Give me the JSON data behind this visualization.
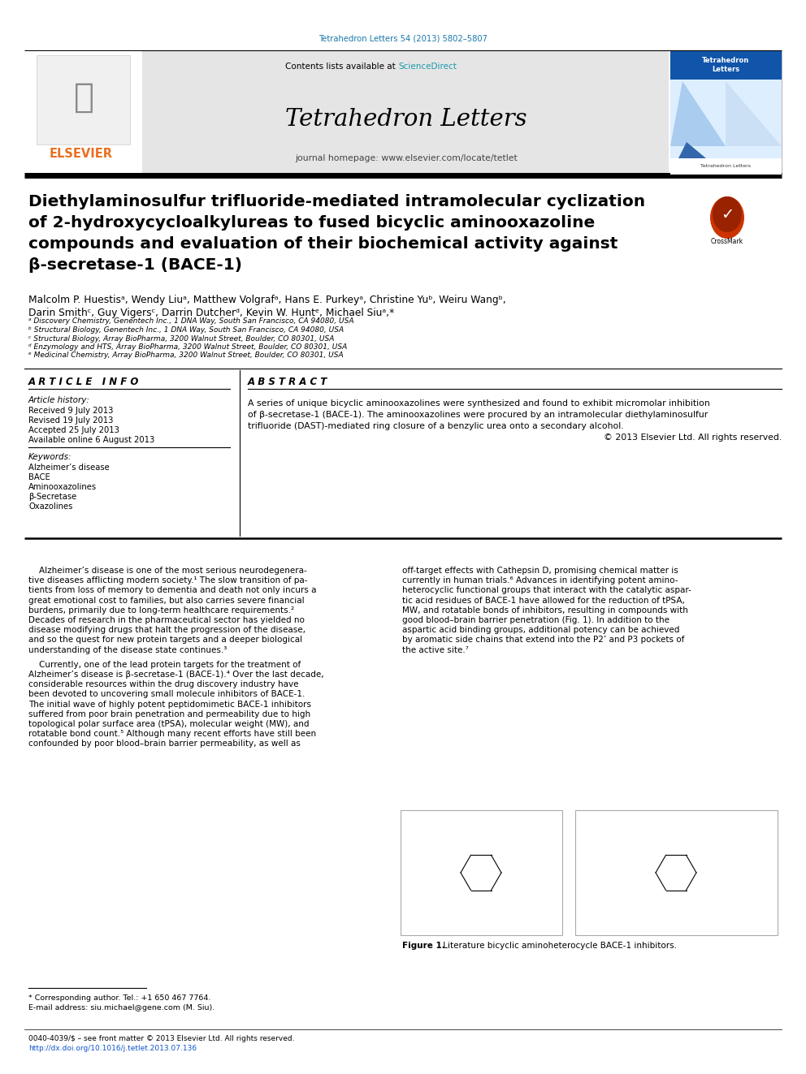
{
  "bg_color": "#ffffff",
  "header_top_text": "Tetrahedron Letters 54 (2013) 5802–5807",
  "header_top_color": "#1a7aaa",
  "journal_title": "Tetrahedron Letters",
  "journal_homepage": "journal homepage: www.elsevier.com/locate/tetlet",
  "contents_text": "Contents lists available at ",
  "sciencedirect_text": "ScienceDirect",
  "sciencedirect_color": "#1a9aaa",
  "elsevier_color": "#e87020",
  "article_title_line1": "Diethylaminosulfur trifluoride-mediated intramolecular cyclization",
  "article_title_line2": "of 2-hydroxycycloalkylureas to fused bicyclic aminooxazoline",
  "article_title_line3": "compounds and evaluation of their biochemical activity against",
  "article_title_line4": "β-secretase-1 (BACE-1)",
  "authors_line1": "Malcolm P. Huestisᵃ, Wendy Liuᵃ, Matthew Volgrafᵃ, Hans E. Purkeyᵃ, Christine Yuᵇ, Weiru Wangᵇ,",
  "authors_line2": "Darin Smithᶜ, Guy Vigersᶜ, Darrin Dutcherᵈ, Kevin W. Huntᵉ, Michael Siuᵃ,*",
  "affil1": "ᵃ Discovery Chemistry, Genentech Inc., 1 DNA Way, South San Francisco, CA 94080, USA",
  "affil2": "ᵇ Structural Biology, Genentech Inc., 1 DNA Way, South San Francisco, CA 94080, USA",
  "affil3": "ᶜ Structural Biology, Array BioPharma, 3200 Walnut Street, Boulder, CO 80301, USA",
  "affil4": "ᵈ Enzymology and HTS, Array BioPharma, 3200 Walnut Street, Boulder, CO 80301, USA",
  "affil5": "ᵉ Medicinal Chemistry, Array BioPharma, 3200 Walnut Street, Boulder, CO 80301, USA",
  "article_info_title": "A R T I C L E   I N F O",
  "article_history_title": "Article history:",
  "received": "Received 9 July 2013",
  "revised": "Revised 19 July 2013",
  "accepted": "Accepted 25 July 2013",
  "available": "Available online 6 August 2013",
  "keywords_title": "Keywords:",
  "keywords": [
    "Alzheimer’s disease",
    "BACE",
    "Aminooxazolines",
    "β-Secretase",
    "Oxazolines"
  ],
  "abstract_title": "A B S T R A C T",
  "abstract_line1": "A series of unique bicyclic aminooxazolines were synthesized and found to exhibit micromolar inhibition",
  "abstract_line2": "of β-secretase-1 (BACE-1). The aminooxazolines were procured by an intramolecular diethylaminosulfur",
  "abstract_line3": "trifluoride (DAST)-mediated ring closure of a benzylic urea onto a secondary alcohol.",
  "abstract_line4": "© 2013 Elsevier Ltd. All rights reserved.",
  "body_col1_lines": [
    "    Alzheimer’s disease is one of the most serious neurodegenera-",
    "tive diseases afflicting modern society.¹ The slow transition of pa-",
    "tients from loss of memory to dementia and death not only incurs a",
    "great emotional cost to families, but also carries severe financial",
    "burdens, primarily due to long-term healthcare requirements.²",
    "Decades of research in the pharmaceutical sector has yielded no",
    "disease modifying drugs that halt the progression of the disease,",
    "and so the quest for new protein targets and a deeper biological",
    "understanding of the disease state continues.³",
    "",
    "    Currently, one of the lead protein targets for the treatment of",
    "Alzheimer’s disease is β-secretase-1 (BACE-1).⁴ Over the last decade,",
    "considerable resources within the drug discovery industry have",
    "been devoted to uncovering small molecule inhibitors of BACE-1.",
    "The initial wave of highly potent peptidomimetic BACE-1 inhibitors",
    "suffered from poor brain penetration and permeability due to high",
    "topological polar surface area (tPSA), molecular weight (MW), and",
    "rotatable bond count.⁵ Although many recent efforts have still been",
    "confounded by poor blood–brain barrier permeability, as well as"
  ],
  "body_col2_lines": [
    "off-target effects with Cathepsin D, promising chemical matter is",
    "currently in human trials.⁶ Advances in identifying potent amino-",
    "heterocyclic functional groups that interact with the catalytic aspar-",
    "tic acid residues of BACE-1 have allowed for the reduction of tPSA,",
    "MW, and rotatable bonds of inhibitors, resulting in compounds with",
    "good blood–brain barrier penetration (Fig. 1). In addition to the",
    "aspartic acid binding groups, additional potency can be achieved",
    "by aromatic side chains that extend into the P2’ and P3 pockets of",
    "the active site.⁷"
  ],
  "figure1_caption_bold": "Figure 1.",
  "figure1_caption_rest": " Literature bicyclic aminoheterocycle BACE-1 inhibitors.",
  "footnote1": "* Corresponding author. Tel.: +1 650 467 7764.",
  "footnote2": "E-mail address: siu.michael@gene.com (M. Siu).",
  "footer_left": "0040-4039/$ – see front matter © 2013 Elsevier Ltd. All rights reserved.",
  "footer_doi": "http://dx.doi.org/10.1016/j.tetlet.2013.07.136",
  "footer_doi_color": "#1155cc",
  "gray_header_color": "#e5e5e5",
  "separator_color": "#000000",
  "heavy_rule_color": "#1a1a1a"
}
